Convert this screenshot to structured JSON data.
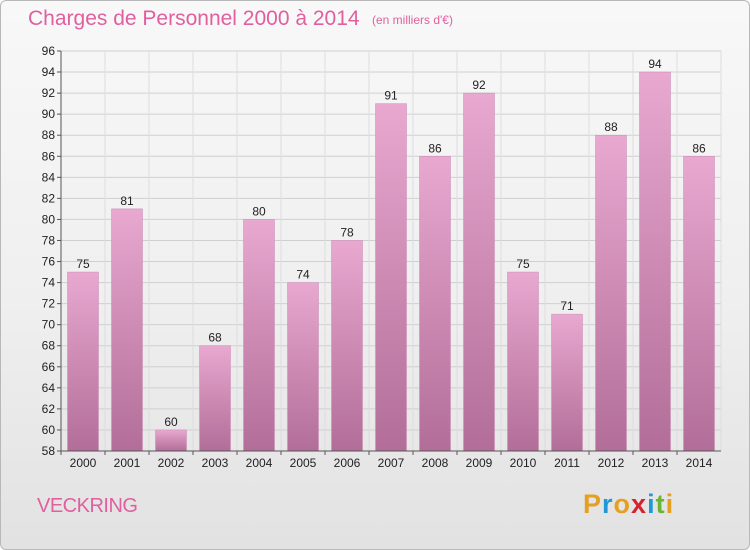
{
  "title": "Charges de Personnel 2000 à 2014",
  "subtitle": "(en milliers d'€)",
  "place": "VECKRING",
  "logo": {
    "letters": [
      "P",
      "r",
      "o",
      "x",
      "i",
      "t",
      "i"
    ],
    "colors": [
      "#e6a020",
      "#1f9ad6",
      "#e6a020",
      "#d6222e",
      "#1f9ad6",
      "#6cb52e",
      "#e6a020"
    ]
  },
  "colors": {
    "bar_top": "#e8a8d0",
    "bar_bottom": "#b26e98",
    "accent": "#e0609f"
  },
  "chart_data": {
    "type": "bar",
    "categories": [
      "2000",
      "2001",
      "2002",
      "2003",
      "2004",
      "2005",
      "2006",
      "2007",
      "2008",
      "2009",
      "2010",
      "2011",
      "2012",
      "2013",
      "2014"
    ],
    "values": [
      75,
      81,
      60,
      68,
      80,
      74,
      78,
      91,
      86,
      92,
      75,
      71,
      88,
      94,
      86
    ],
    "ylim": [
      58,
      96
    ],
    "yticks": [
      58,
      60,
      62,
      64,
      66,
      68,
      70,
      72,
      74,
      76,
      78,
      80,
      82,
      84,
      86,
      88,
      90,
      92,
      94,
      96
    ],
    "grid": true,
    "title": "Charges de Personnel 2000 à 2014",
    "xlabel": "",
    "ylabel": ""
  }
}
